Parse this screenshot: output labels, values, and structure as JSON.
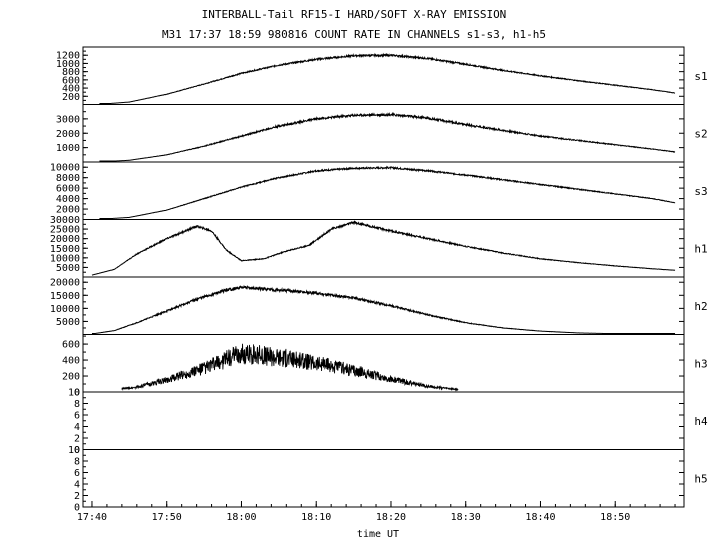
{
  "title": "INTERBALL-Tail RF15-I HARD/SOFT X-RAY EMISSION",
  "subtitle": "M31  17:37 18:59 980816  COUNT RATE IN CHANNELS s1-s3, h1-h5",
  "xlabel": "time UT",
  "x_ticks": [
    "17:40",
    "17:50",
    "18:00",
    "18:10",
    "18:20",
    "18:30",
    "18:40",
    "18:50"
  ],
  "chart_data": [
    {
      "type": "line",
      "channel": "s1",
      "ylim": [
        0,
        1400
      ],
      "yticks": [
        200,
        400,
        600,
        800,
        1000,
        1200
      ],
      "x": [
        "17:41",
        "17:45",
        "17:50",
        "17:55",
        "18:00",
        "18:05",
        "18:10",
        "18:15",
        "18:20",
        "18:25",
        "18:30",
        "18:35",
        "18:40",
        "18:45",
        "18:50",
        "18:55",
        "18:58"
      ],
      "values": [
        5,
        60,
        250,
        500,
        760,
        960,
        1100,
        1190,
        1200,
        1120,
        980,
        830,
        700,
        580,
        470,
        360,
        280
      ]
    },
    {
      "type": "line",
      "channel": "s2",
      "ylim": [
        0,
        4000
      ],
      "yticks": [
        1000,
        2000,
        3000
      ],
      "x": [
        "17:41",
        "17:45",
        "17:50",
        "17:55",
        "18:00",
        "18:05",
        "18:10",
        "18:15",
        "18:20",
        "18:25",
        "18:30",
        "18:35",
        "18:40",
        "18:45",
        "18:50",
        "18:55",
        "18:58"
      ],
      "values": [
        10,
        120,
        500,
        1100,
        1800,
        2500,
        3000,
        3250,
        3300,
        3050,
        2600,
        2200,
        1800,
        1500,
        1200,
        900,
        700
      ]
    },
    {
      "type": "line",
      "channel": "s3",
      "ylim": [
        0,
        11000
      ],
      "yticks": [
        2000,
        4000,
        6000,
        8000,
        10000
      ],
      "x": [
        "17:41",
        "17:45",
        "17:50",
        "17:55",
        "18:00",
        "18:05",
        "18:10",
        "18:15",
        "18:20",
        "18:25",
        "18:30",
        "18:35",
        "18:40",
        "18:45",
        "18:50",
        "18:55",
        "18:58"
      ],
      "values": [
        50,
        400,
        1800,
        4000,
        6200,
        8000,
        9300,
        9800,
        9900,
        9300,
        8500,
        7600,
        6700,
        5800,
        4900,
        4000,
        3200
      ]
    },
    {
      "type": "line",
      "channel": "h1",
      "ylim": [
        0,
        30000
      ],
      "yticks": [
        5000,
        10000,
        15000,
        20000,
        25000,
        30000
      ],
      "x": [
        "17:40",
        "17:43",
        "17:46",
        "17:50",
        "17:54",
        "17:56",
        "17:58",
        "18:00",
        "18:03",
        "18:06",
        "18:09",
        "18:12",
        "18:15",
        "18:20",
        "18:25",
        "18:30",
        "18:35",
        "18:40",
        "18:45",
        "18:50",
        "18:55",
        "18:58"
      ],
      "values": [
        1000,
        4000,
        12000,
        20000,
        26500,
        24000,
        14000,
        8500,
        9500,
        13500,
        16500,
        25000,
        28500,
        24000,
        20000,
        16000,
        12500,
        9500,
        7500,
        5800,
        4300,
        3500
      ]
    },
    {
      "type": "line",
      "channel": "h2",
      "ylim": [
        0,
        22000
      ],
      "yticks": [
        5000,
        10000,
        15000,
        20000
      ],
      "x": [
        "17:40",
        "17:43",
        "17:46",
        "17:50",
        "17:54",
        "17:58",
        "18:00",
        "18:05",
        "18:10",
        "18:15",
        "18:20",
        "18:25",
        "18:30",
        "18:35",
        "18:40",
        "18:45",
        "18:50",
        "18:55",
        "18:58"
      ],
      "values": [
        200,
        1500,
        4500,
        9000,
        13500,
        17000,
        18000,
        17000,
        15800,
        14000,
        11000,
        7500,
        4500,
        2500,
        1300,
        600,
        300,
        120,
        60
      ]
    },
    {
      "type": "line",
      "channel": "h3",
      "ylim": [
        0,
        720
      ],
      "yticks": [
        0,
        200,
        400,
        600
      ],
      "x": [
        "17:44",
        "17:46",
        "17:50",
        "17:55",
        "18:00",
        "18:05",
        "18:10",
        "18:15",
        "18:20",
        "18:25",
        "18:29"
      ],
      "values": [
        40,
        60,
        150,
        300,
        480,
        440,
        360,
        270,
        160,
        70,
        30
      ]
    },
    {
      "type": "line",
      "channel": "h4",
      "ylim": [
        0,
        10
      ],
      "yticks": [
        0,
        2,
        4,
        6,
        8,
        10
      ],
      "x": [],
      "values": []
    },
    {
      "type": "line",
      "channel": "h5",
      "ylim": [
        0,
        10
      ],
      "yticks": [
        0,
        2,
        4,
        6,
        8,
        10
      ],
      "x": [],
      "values": []
    }
  ]
}
